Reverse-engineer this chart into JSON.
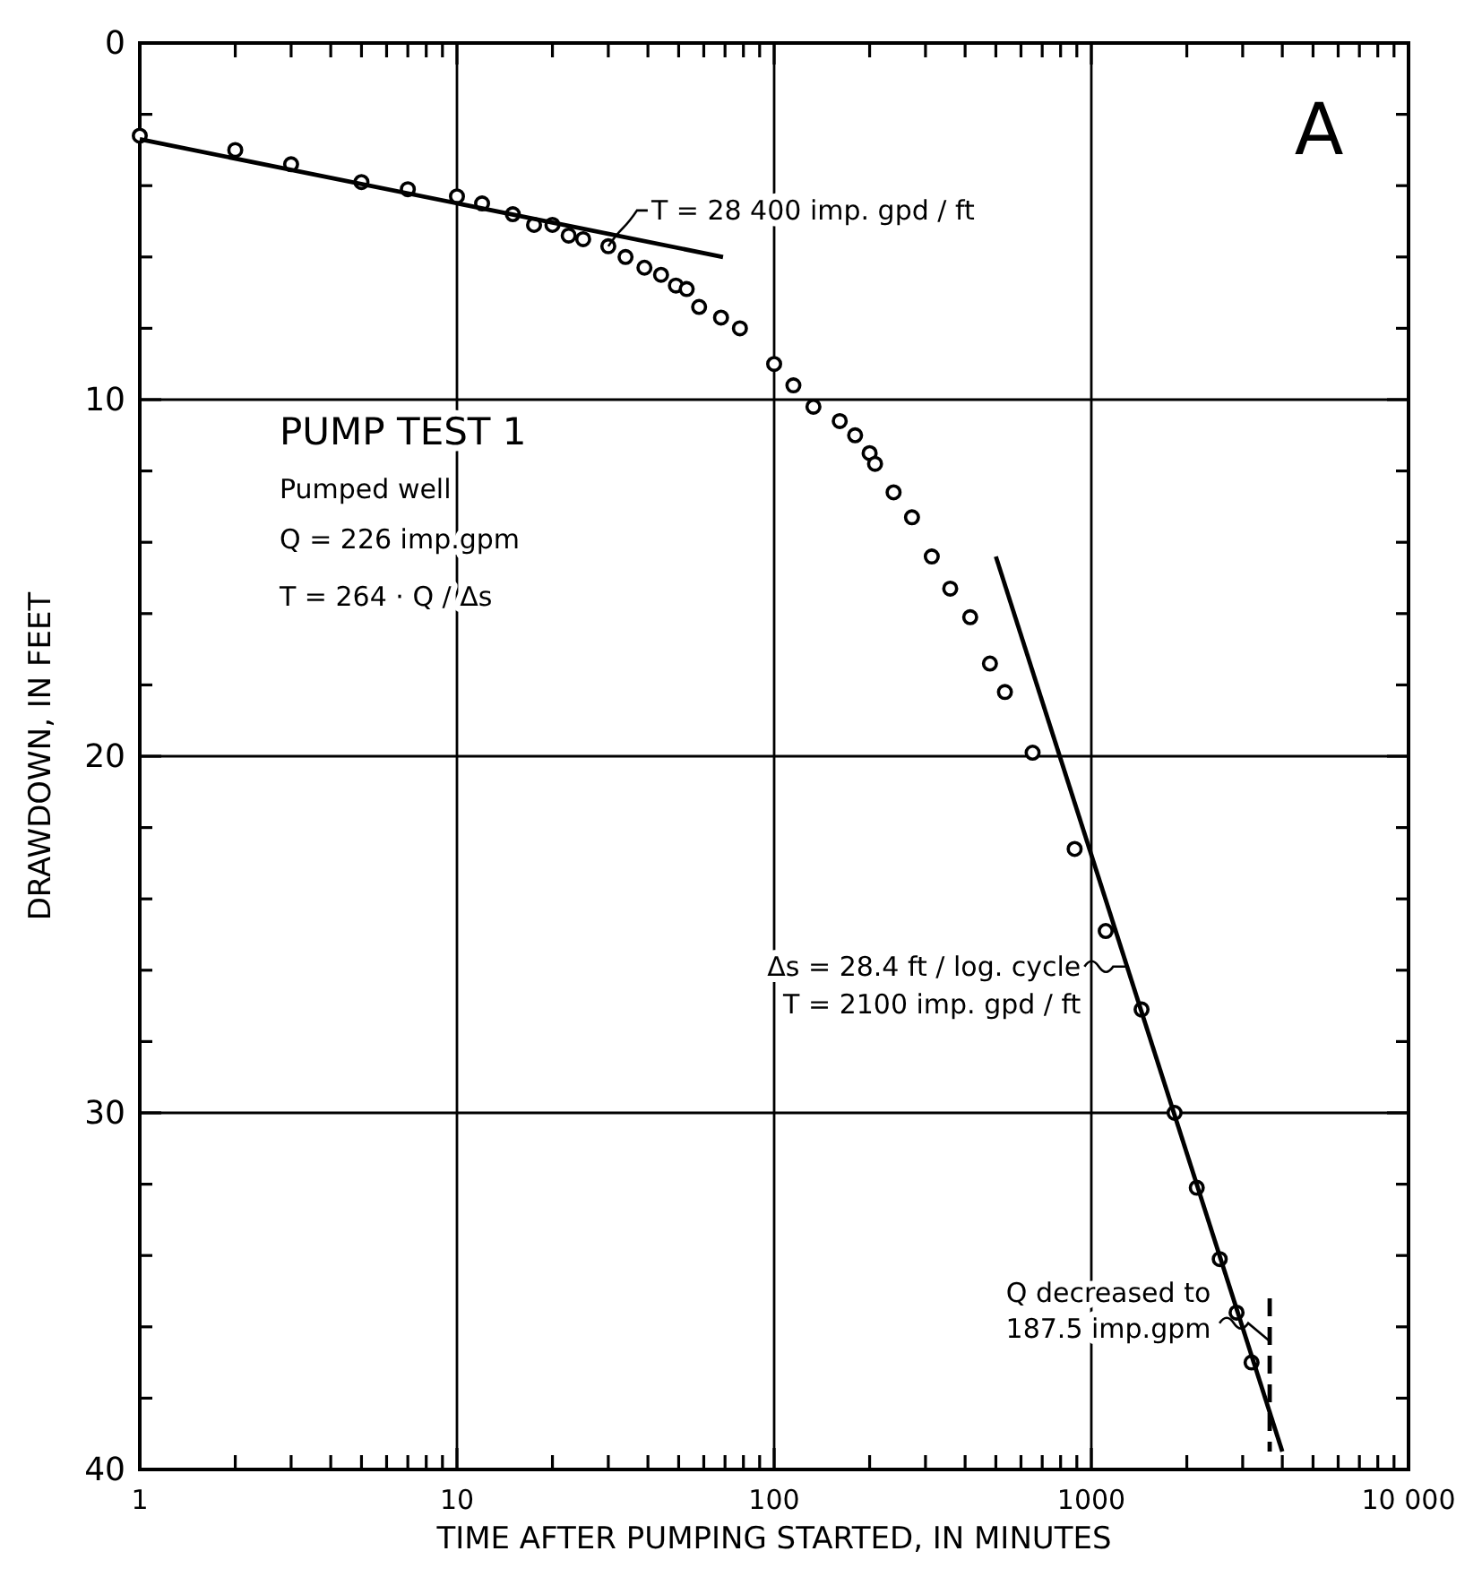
{
  "chart_data": {
    "type": "scatter",
    "xlabel": "TIME AFTER PUMPING STARTED, IN MINUTES",
    "ylabel": "DRAWDOWN, IN FEET",
    "log": "x",
    "grid": true,
    "marker": "circle",
    "line_style": "solid",
    "xlim": [
      1,
      10000
    ],
    "ylim": [
      40,
      0
    ],
    "xticks": [
      1,
      {
        "value": 2,
        "label": null
      },
      {
        "value": 3,
        "label": null
      },
      {
        "value": 4,
        "label": null
      },
      {
        "value": 5,
        "label": null
      },
      {
        "value": 6,
        "label": null
      },
      {
        "value": 7,
        "label": null
      },
      {
        "value": 8,
        "label": null
      },
      {
        "value": 9,
        "label": null
      },
      10,
      {
        "value": 20,
        "label": null
      },
      {
        "value": 30,
        "label": null
      },
      {
        "value": 40,
        "label": null
      },
      {
        "value": 50,
        "label": null
      },
      {
        "value": 60,
        "label": null
      },
      {
        "value": 70,
        "label": null
      },
      {
        "value": 80,
        "label": null
      },
      {
        "value": 90,
        "label": null
      },
      100,
      {
        "value": 200,
        "label": null
      },
      {
        "value": 300,
        "label": null
      },
      {
        "value": 400,
        "label": null
      },
      {
        "value": 500,
        "label": null
      },
      {
        "value": 600,
        "label": null
      },
      {
        "value": 700,
        "label": null
      },
      {
        "value": 800,
        "label": null
      },
      {
        "value": 900,
        "label": null
      },
      1000,
      {
        "value": 2000,
        "label": null
      },
      {
        "value": 3000,
        "label": null
      },
      {
        "value": 4000,
        "label": null
      },
      {
        "value": 5000,
        "label": null
      },
      {
        "value": 6000,
        "label": null
      },
      {
        "value": 7000,
        "label": null
      },
      {
        "value": 8000,
        "label": null
      },
      {
        "value": 9000,
        "label": null
      },
      {
        "value": 10000,
        "label": "10 000"
      }
    ],
    "yticks": [
      0,
      {
        "value": 2,
        "label": null
      },
      {
        "value": 4,
        "label": null
      },
      {
        "value": 6,
        "label": null
      },
      {
        "value": 8,
        "label": null
      },
      10,
      {
        "value": 12,
        "label": null
      },
      {
        "value": 14,
        "label": null
      },
      {
        "value": 16,
        "label": null
      },
      {
        "value": 18,
        "label": null
      },
      20,
      {
        "value": 22,
        "label": null
      },
      {
        "value": 24,
        "label": null
      },
      {
        "value": 26,
        "label": null
      },
      {
        "value": 28,
        "label": null
      },
      30,
      {
        "value": 32,
        "label": null
      },
      {
        "value": 34,
        "label": null
      },
      {
        "value": 36,
        "label": null
      },
      {
        "value": 38,
        "label": null
      },
      40
    ],
    "series": [
      {
        "color": "#000000",
        "x": [
          1,
          2,
          3,
          5,
          7,
          10,
          12,
          15,
          17.5,
          20,
          22.5,
          25,
          30,
          34,
          39,
          44,
          49,
          53,
          58,
          68,
          78,
          100,
          115,
          133,
          161,
          180,
          200,
          208,
          238,
          272,
          314,
          359,
          415,
          479,
          534,
          653,
          886,
          1110,
          1440,
          1830,
          2150,
          2540,
          2870,
          3200
        ],
        "values": [
          2.6,
          3.0,
          3.4,
          3.9,
          4.1,
          4.3,
          4.5,
          4.8,
          5.1,
          5.1,
          5.4,
          5.5,
          5.7,
          6.0,
          6.3,
          6.5,
          6.8,
          6.9,
          7.4,
          7.7,
          8.0,
          9.0,
          9.6,
          10.2,
          10.6,
          11.0,
          11.5,
          11.8,
          12.6,
          13.3,
          14.4,
          15.3,
          16.1,
          17.4,
          18.2,
          19.9,
          22.6,
          24.9,
          27.1,
          30.0,
          32.1,
          34.1,
          35.6,
          37.0
        ]
      },
      {
        "type": "line",
        "marker": "none",
        "color": "#000000",
        "x": [
          1,
          69
        ],
        "values": [
          2.7,
          6.0
        ]
      },
      {
        "type": "line",
        "marker": "none",
        "color": "#000000",
        "x": [
          500,
          4000
        ],
        "values": [
          14.4,
          39.5
        ]
      },
      {
        "type": "line",
        "marker": "none",
        "color": "#000000",
        "line_style": "dashed",
        "x": [
          3650,
          3650
        ],
        "values": [
          35.2,
          39.5
        ]
      }
    ],
    "annotations": [
      "A",
      "PUMP TEST 1",
      "Pumped well",
      "Q = 226 imp.gpm",
      "T = 264 · Q / Δs",
      {
        "text": "T = 28 400 imp. gpd / ft",
        "x": 30,
        "y": 5.7
      },
      {
        "text": "Δs = 28.4 ft / log. cycle",
        "x": 1300,
        "y": 25.9
      },
      "T = 2100 imp. gpd / ft",
      {
        "text": "Q decreased to 187.5 imp.gpm",
        "x": 3650,
        "y": 36.4
      }
    ]
  }
}
